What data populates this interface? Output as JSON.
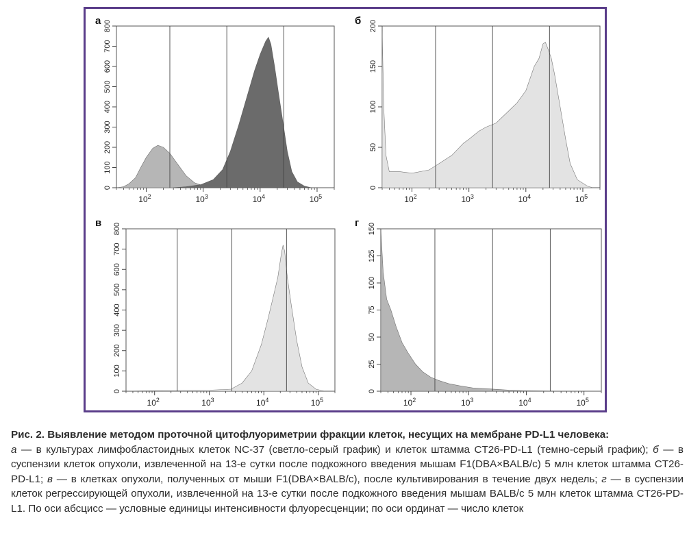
{
  "figure": {
    "panels": [
      {
        "letter": "а"
      },
      {
        "letter": "б"
      },
      {
        "letter": "в"
      },
      {
        "letter": "г"
      }
    ]
  },
  "chart_data": [
    {
      "type": "area",
      "panel": "а",
      "xscale": "log",
      "xlim": [
        30,
        200000
      ],
      "ylim": [
        0,
        800
      ],
      "yticks": [
        0,
        100,
        200,
        300,
        400,
        500,
        600,
        700,
        800
      ],
      "xticks": [
        "10^2",
        "10^3",
        "10^4",
        "10^5"
      ],
      "gates": [
        260,
        2600,
        26000
      ],
      "series": [
        {
          "color": "#b6b6b6",
          "points": [
            [
              30,
              0
            ],
            [
              40,
              5
            ],
            [
              50,
              20
            ],
            [
              65,
              50
            ],
            [
              80,
              100
            ],
            [
              100,
              150
            ],
            [
              130,
              195
            ],
            [
              160,
              210
            ],
            [
              200,
              200
            ],
            [
              260,
              170
            ],
            [
              350,
              120
            ],
            [
              500,
              60
            ],
            [
              700,
              25
            ],
            [
              1000,
              10
            ],
            [
              1500,
              5
            ],
            [
              2500,
              0
            ]
          ]
        },
        {
          "color": "#6b6b6b",
          "points": [
            [
              300,
              0
            ],
            [
              500,
              5
            ],
            [
              900,
              15
            ],
            [
              1500,
              40
            ],
            [
              2200,
              90
            ],
            [
              3000,
              180
            ],
            [
              4200,
              310
            ],
            [
              6000,
              460
            ],
            [
              8000,
              580
            ],
            [
              10000,
              660
            ],
            [
              12500,
              725
            ],
            [
              14000,
              745
            ],
            [
              15500,
              710
            ],
            [
              18000,
              600
            ],
            [
              21000,
              470
            ],
            [
              25000,
              330
            ],
            [
              30000,
              180
            ],
            [
              36000,
              80
            ],
            [
              45000,
              30
            ],
            [
              60000,
              8
            ],
            [
              80000,
              0
            ]
          ]
        }
      ]
    },
    {
      "type": "area",
      "panel": "б",
      "xscale": "log",
      "xlim": [
        30,
        200000
      ],
      "ylim": [
        0,
        200
      ],
      "yticks": [
        0,
        50,
        100,
        150,
        200
      ],
      "xticks": [
        "10^2",
        "10^3",
        "10^4",
        "10^5"
      ],
      "gates": [
        260,
        2600,
        26000
      ],
      "series": [
        {
          "color": "#e3e3e3",
          "points": [
            [
              30,
              195
            ],
            [
              32,
              100
            ],
            [
              35,
              40
            ],
            [
              40,
              20
            ],
            [
              60,
              20
            ],
            [
              100,
              18
            ],
            [
              200,
              22
            ],
            [
              300,
              30
            ],
            [
              500,
              40
            ],
            [
              800,
              55
            ],
            [
              1000,
              60
            ],
            [
              1500,
              70
            ],
            [
              2000,
              75
            ],
            [
              3000,
              80
            ],
            [
              5000,
              95
            ],
            [
              7000,
              105
            ],
            [
              10000,
              120
            ],
            [
              14000,
              150
            ],
            [
              17000,
              160
            ],
            [
              20000,
              178
            ],
            [
              22000,
              180
            ],
            [
              25000,
              170
            ],
            [
              28000,
              160
            ],
            [
              32000,
              140
            ],
            [
              40000,
              100
            ],
            [
              50000,
              60
            ],
            [
              60000,
              30
            ],
            [
              80000,
              10
            ],
            [
              120000,
              2
            ],
            [
              150000,
              0
            ]
          ]
        }
      ]
    },
    {
      "type": "area",
      "panel": "в",
      "xscale": "log",
      "xlim": [
        30,
        200000
      ],
      "ylim": [
        0,
        800
      ],
      "yticks": [
        0,
        100,
        200,
        300,
        400,
        500,
        600,
        700,
        800
      ],
      "xticks": [
        "10^2",
        "10^3",
        "10^4",
        "10^5"
      ],
      "gates": [
        260,
        2600,
        26000
      ],
      "series": [
        {
          "color": "#e3e3e3",
          "points": [
            [
              30,
              0
            ],
            [
              100,
              3
            ],
            [
              1000,
              5
            ],
            [
              2500,
              10
            ],
            [
              4000,
              40
            ],
            [
              6000,
              100
            ],
            [
              9000,
              230
            ],
            [
              12000,
              360
            ],
            [
              15000,
              470
            ],
            [
              18000,
              560
            ],
            [
              21000,
              680
            ],
            [
              22500,
              720
            ],
            [
              24000,
              690
            ],
            [
              27000,
              560
            ],
            [
              32000,
              420
            ],
            [
              40000,
              250
            ],
            [
              50000,
              120
            ],
            [
              65000,
              40
            ],
            [
              90000,
              10
            ],
            [
              130000,
              0
            ]
          ]
        }
      ]
    },
    {
      "type": "area",
      "panel": "г",
      "xscale": "log",
      "xlim": [
        30,
        200000
      ],
      "ylim": [
        0,
        150
      ],
      "yticks": [
        0,
        25,
        50,
        75,
        100,
        125,
        150
      ],
      "xticks": [
        "10^2",
        "10^3",
        "10^4",
        "10^5"
      ],
      "gates": [
        260,
        2600,
        26000
      ],
      "series": [
        {
          "color": "#b6b6b6",
          "points": [
            [
              30,
              150
            ],
            [
              33,
              110
            ],
            [
              38,
              85
            ],
            [
              45,
              75
            ],
            [
              55,
              60
            ],
            [
              70,
              45
            ],
            [
              90,
              35
            ],
            [
              120,
              25
            ],
            [
              160,
              18
            ],
            [
              220,
              13
            ],
            [
              300,
              10
            ],
            [
              450,
              7
            ],
            [
              700,
              5
            ],
            [
              1200,
              3
            ],
            [
              2500,
              2
            ],
            [
              5000,
              1
            ],
            [
              10000,
              0.5
            ],
            [
              50000,
              0
            ]
          ]
        }
      ]
    }
  ],
  "caption": {
    "title": "Рис. 2. Выявление методом проточной цитофлуориметрии фракции клеток, несущих на мембране PD-L1 человека:",
    "body": [
      {
        "i": "а",
        "t": " — в культурах лимфобластоидных клеток NC-37 (светло-серый график) и клеток штамма CT26-PD-L1 (темно-серый график); "
      },
      {
        "i": "б",
        "t": " — в суспензии клеток опухоли, извлеченной на 13-е сутки после подкожного введения мышам F1(DBA×BALB/c) 5 млн клеток штамма CT26-PD-L1; "
      },
      {
        "i": "в",
        "t": " — в клетках опухоли, полученных от мыши F1(DBA×BALB/c), после культивирования в течение двух недель; "
      },
      {
        "i": "г",
        "t": " — в суспензии клеток регрессирующей опухоли, извлеченной на 13-е сутки после подкожного введения мышам BALB/c 5 млн клеток штамма CT26-PD-L1. По оси абсцисс — условные единицы интенсивности флуоресценции; по оси ординат — число клеток"
      }
    ]
  }
}
